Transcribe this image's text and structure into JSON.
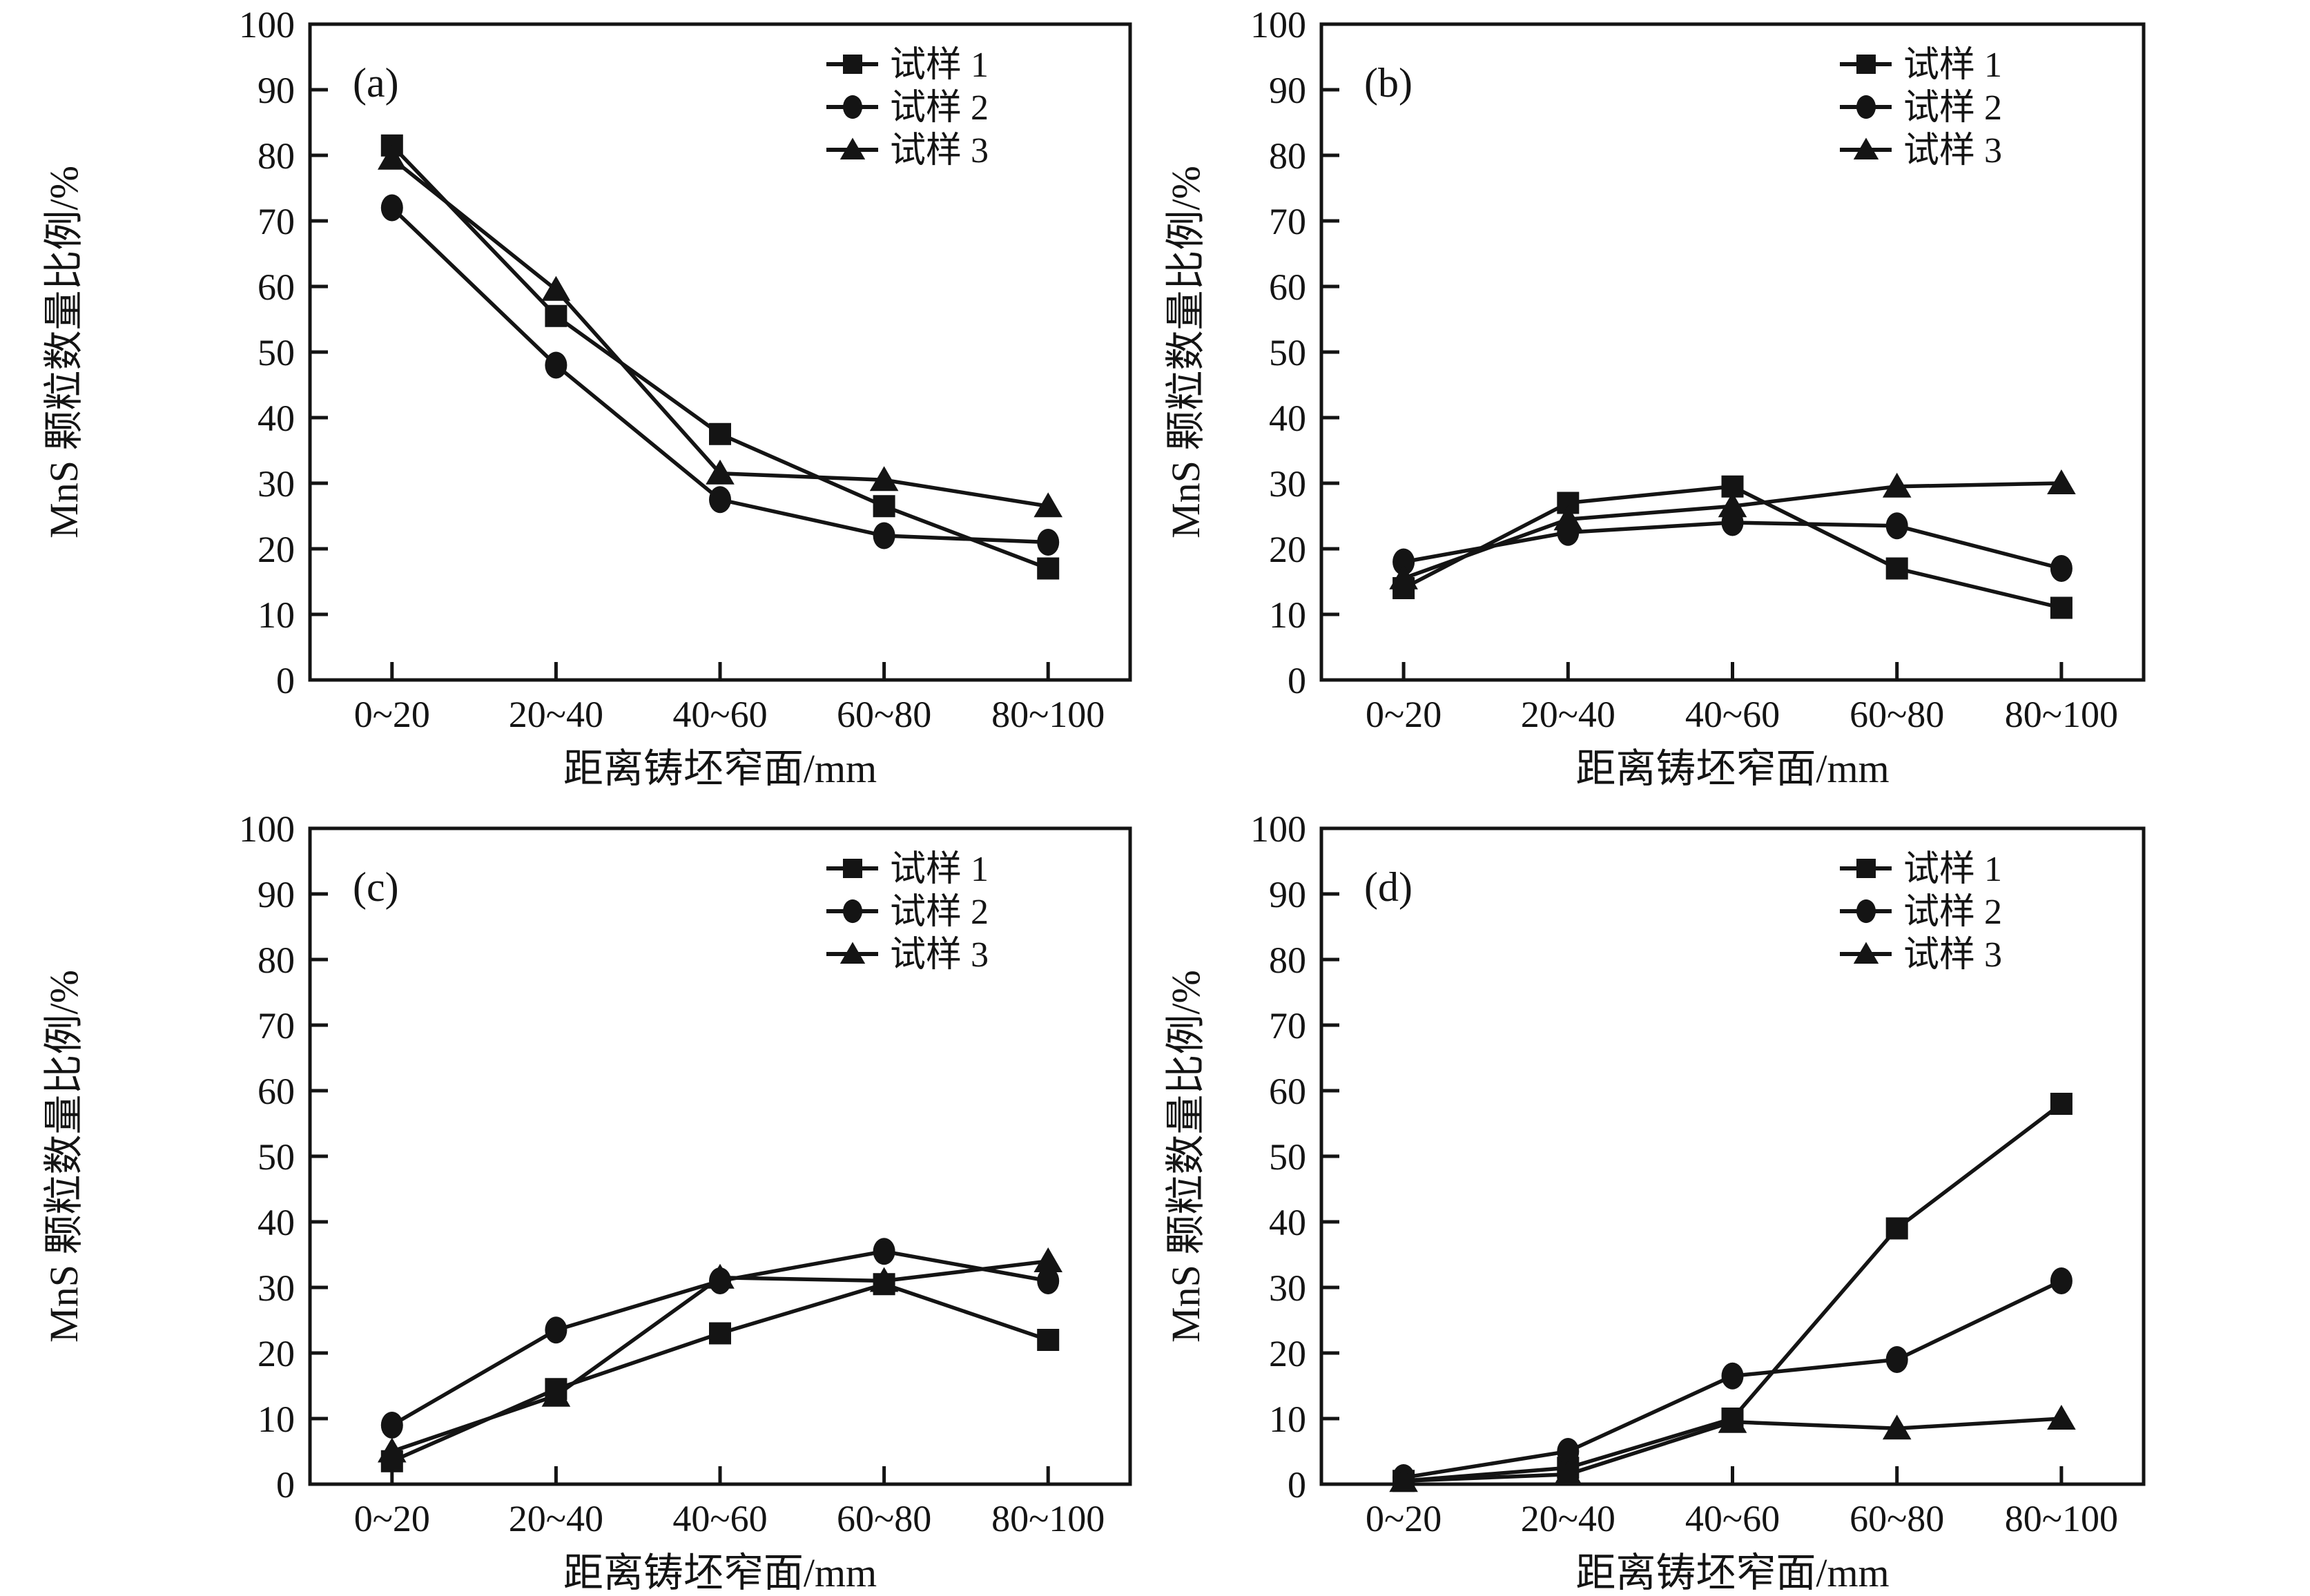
{
  "figure": {
    "background": "#ffffff",
    "ink_color": "#141414",
    "xlabel": "距离铸坯窄面/mm",
    "ylabel": "MnS 颗粒数量比例/%",
    "x_categories": [
      "0~20",
      "20~40",
      "40~60",
      "60~80",
      "80~100"
    ],
    "y_tick_labels": [
      "0",
      "10",
      "20",
      "30",
      "40",
      "50",
      "60",
      "70",
      "80",
      "90",
      "100"
    ],
    "legend": [
      {
        "label": "试样 1",
        "marker": "square"
      },
      {
        "label": "试样 2",
        "marker": "circle"
      },
      {
        "label": "试样 3",
        "marker": "triangle"
      }
    ]
  },
  "chart_data": [
    {
      "type": "line",
      "panel_label": "(a)",
      "title": "",
      "xlabel": "距离铸坯窄面/mm",
      "ylabel": "MnS 颗粒数量比例/%",
      "categories": [
        "0~20",
        "20~40",
        "40~60",
        "60~80",
        "80~100"
      ],
      "ylim": [
        0,
        100
      ],
      "ytick_step": 10,
      "grid": false,
      "legend_position": "top-right",
      "series": [
        {
          "name": "试样 1",
          "marker": "square",
          "values": [
            81.5,
            55.5,
            37.5,
            26.5,
            17
          ]
        },
        {
          "name": "试样 2",
          "marker": "circle",
          "values": [
            72,
            48,
            27.5,
            22,
            21
          ]
        },
        {
          "name": "试样 3",
          "marker": "triangle",
          "values": [
            79.5,
            59.5,
            31.5,
            30.5,
            26.5
          ]
        }
      ]
    },
    {
      "type": "line",
      "panel_label": "(b)",
      "title": "",
      "xlabel": "距离铸坯窄面/mm",
      "ylabel": "MnS 颗粒数量比例/%",
      "categories": [
        "0~20",
        "20~40",
        "40~60",
        "60~80",
        "80~100"
      ],
      "ylim": [
        0,
        100
      ],
      "ytick_step": 10,
      "grid": false,
      "legend_position": "top-right",
      "series": [
        {
          "name": "试样 1",
          "marker": "square",
          "values": [
            14,
            27,
            29.5,
            17,
            11
          ]
        },
        {
          "name": "试样 2",
          "marker": "circle",
          "values": [
            18,
            22.5,
            24,
            23.5,
            17
          ]
        },
        {
          "name": "试样 3",
          "marker": "triangle",
          "values": [
            15.5,
            24.5,
            26.5,
            29.5,
            30
          ]
        }
      ]
    },
    {
      "type": "line",
      "panel_label": "(c)",
      "title": "",
      "xlabel": "距离铸坯窄面/mm",
      "ylabel": "MnS 颗粒数量比例/%",
      "categories": [
        "0~20",
        "20~40",
        "40~60",
        "60~80",
        "80~100"
      ],
      "ylim": [
        0,
        100
      ],
      "ytick_step": 10,
      "grid": false,
      "legend_position": "top-right",
      "series": [
        {
          "name": "试样 1",
          "marker": "square",
          "values": [
            3.5,
            14.5,
            23,
            30.5,
            22
          ]
        },
        {
          "name": "试样 2",
          "marker": "circle",
          "values": [
            9,
            23.5,
            31,
            35.5,
            31
          ]
        },
        {
          "name": "试样 3",
          "marker": "triangle",
          "values": [
            5,
            13.5,
            31.5,
            31,
            34
          ]
        }
      ]
    },
    {
      "type": "line",
      "panel_label": "(d)",
      "title": "",
      "xlabel": "距离铸坯窄面/mm",
      "ylabel": "MnS 颗粒数量比例/%",
      "categories": [
        "0~20",
        "20~40",
        "40~60",
        "60~80",
        "80~100"
      ],
      "ylim": [
        0,
        100
      ],
      "ytick_step": 10,
      "grid": false,
      "legend_position": "top-right",
      "series": [
        {
          "name": "试样 1",
          "marker": "square",
          "values": [
            0.5,
            2.5,
            10,
            39,
            58
          ]
        },
        {
          "name": "试样 2",
          "marker": "circle",
          "values": [
            1,
            5,
            16.5,
            19,
            31
          ]
        },
        {
          "name": "试样 3",
          "marker": "triangle",
          "values": [
            0.5,
            1.5,
            9.5,
            8.5,
            10
          ]
        }
      ]
    }
  ]
}
